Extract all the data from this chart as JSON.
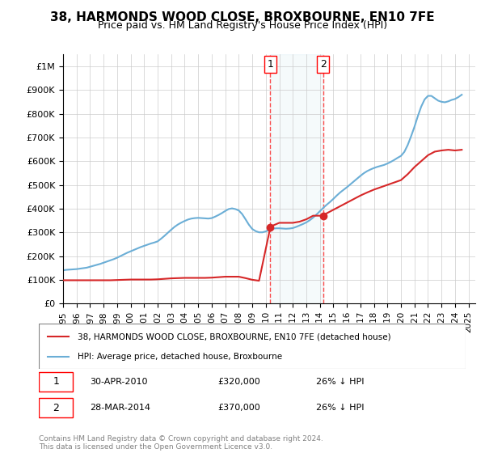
{
  "title": "38, HARMONDS WOOD CLOSE, BROXBOURNE, EN10 7FE",
  "subtitle": "Price paid vs. HM Land Registry's House Price Index (HPI)",
  "title_fontsize": 11,
  "subtitle_fontsize": 9,
  "hpi_color": "#6baed6",
  "price_color": "#d62728",
  "marker_color": "#d62728",
  "background_color": "#ffffff",
  "grid_color": "#cccccc",
  "ylim": [
    0,
    1050000
  ],
  "yticks": [
    0,
    100000,
    200000,
    300000,
    400000,
    500000,
    600000,
    700000,
    800000,
    900000,
    1000000
  ],
  "ytick_labels": [
    "£0",
    "£100K",
    "£200K",
    "£300K",
    "£400K",
    "£500K",
    "£600K",
    "£700K",
    "£800K",
    "£900K",
    "£1M"
  ],
  "xlim_start": 1995.0,
  "xlim_end": 2025.5,
  "xtick_years": [
    1995,
    1996,
    1997,
    1998,
    1999,
    2000,
    2001,
    2002,
    2003,
    2004,
    2005,
    2006,
    2007,
    2008,
    2009,
    2010,
    2011,
    2012,
    2013,
    2014,
    2015,
    2016,
    2017,
    2018,
    2019,
    2020,
    2021,
    2022,
    2023,
    2024,
    2025
  ],
  "sale1_x": 2010.33,
  "sale1_y": 320000,
  "sale1_label": "1",
  "sale2_x": 2014.24,
  "sale2_y": 370000,
  "sale2_label": "2",
  "legend_label_price": "38, HARMONDS WOOD CLOSE, BROXBOURNE, EN10 7FE (detached house)",
  "legend_label_hpi": "HPI: Average price, detached house, Broxbourne",
  "annotation1_date": "30-APR-2010",
  "annotation1_price": "£320,000",
  "annotation1_hpi": "26% ↓ HPI",
  "annotation2_date": "28-MAR-2014",
  "annotation2_price": "£370,000",
  "annotation2_hpi": "26% ↓ HPI",
  "footer_text": "Contains HM Land Registry data © Crown copyright and database right 2024.\nThis data is licensed under the Open Government Licence v3.0.",
  "hpi_x": [
    1995.0,
    1995.25,
    1995.5,
    1995.75,
    1996.0,
    1996.25,
    1996.5,
    1996.75,
    1997.0,
    1997.25,
    1997.5,
    1997.75,
    1998.0,
    1998.25,
    1998.5,
    1998.75,
    1999.0,
    1999.25,
    1999.5,
    1999.75,
    2000.0,
    2000.25,
    2000.5,
    2000.75,
    2001.0,
    2001.25,
    2001.5,
    2001.75,
    2002.0,
    2002.25,
    2002.5,
    2002.75,
    2003.0,
    2003.25,
    2003.5,
    2003.75,
    2004.0,
    2004.25,
    2004.5,
    2004.75,
    2005.0,
    2005.25,
    2005.5,
    2005.75,
    2006.0,
    2006.25,
    2006.5,
    2006.75,
    2007.0,
    2007.25,
    2007.5,
    2007.75,
    2008.0,
    2008.25,
    2008.5,
    2008.75,
    2009.0,
    2009.25,
    2009.5,
    2009.75,
    2010.0,
    2010.25,
    2010.5,
    2010.75,
    2011.0,
    2011.25,
    2011.5,
    2011.75,
    2012.0,
    2012.25,
    2012.5,
    2012.75,
    2013.0,
    2013.25,
    2013.5,
    2013.75,
    2014.0,
    2014.25,
    2014.5,
    2014.75,
    2015.0,
    2015.25,
    2015.5,
    2015.75,
    2016.0,
    2016.25,
    2016.5,
    2016.75,
    2017.0,
    2017.25,
    2017.5,
    2017.75,
    2018.0,
    2018.25,
    2018.5,
    2018.75,
    2019.0,
    2019.25,
    2019.5,
    2019.75,
    2020.0,
    2020.25,
    2020.5,
    2020.75,
    2021.0,
    2021.25,
    2021.5,
    2021.75,
    2022.0,
    2022.25,
    2022.5,
    2022.75,
    2023.0,
    2023.25,
    2023.5,
    2023.75,
    2024.0,
    2024.25,
    2024.5
  ],
  "hpi_y": [
    140000,
    142000,
    143000,
    144000,
    145000,
    147000,
    149000,
    151000,
    155000,
    159000,
    163000,
    167000,
    172000,
    177000,
    182000,
    187000,
    193000,
    200000,
    207000,
    214000,
    220000,
    226000,
    232000,
    238000,
    243000,
    248000,
    253000,
    257000,
    262000,
    273000,
    285000,
    298000,
    311000,
    323000,
    333000,
    341000,
    348000,
    354000,
    358000,
    360000,
    361000,
    360000,
    359000,
    358000,
    360000,
    366000,
    373000,
    381000,
    390000,
    398000,
    401000,
    398000,
    392000,
    377000,
    355000,
    332000,
    314000,
    305000,
    300000,
    300000,
    304000,
    310000,
    315000,
    317000,
    317000,
    316000,
    315000,
    316000,
    318000,
    323000,
    329000,
    335000,
    342000,
    351000,
    362000,
    375000,
    389000,
    403000,
    416000,
    428000,
    441000,
    455000,
    468000,
    479000,
    490000,
    502000,
    514000,
    526000,
    538000,
    549000,
    558000,
    565000,
    571000,
    576000,
    580000,
    584000,
    590000,
    597000,
    605000,
    614000,
    622000,
    639000,
    668000,
    705000,
    745000,
    790000,
    830000,
    860000,
    875000,
    875000,
    865000,
    855000,
    850000,
    848000,
    852000,
    858000,
    862000,
    870000,
    880000
  ],
  "price_x": [
    1995.0,
    1995.5,
    1996.0,
    1996.5,
    1997.0,
    1997.5,
    1998.0,
    1998.5,
    1999.0,
    1999.5,
    2000.0,
    2000.5,
    2001.0,
    2001.5,
    2002.0,
    2002.5,
    2003.0,
    2003.5,
    2004.0,
    2004.5,
    2005.0,
    2005.5,
    2006.0,
    2006.5,
    2007.0,
    2007.5,
    2008.0,
    2008.5,
    2009.0,
    2009.5,
    2010.33,
    2010.5,
    2011.0,
    2011.5,
    2012.0,
    2012.5,
    2013.0,
    2013.5,
    2014.24,
    2014.5,
    2015.0,
    2015.5,
    2016.0,
    2016.5,
    2017.0,
    2017.5,
    2018.0,
    2018.5,
    2019.0,
    2019.5,
    2020.0,
    2020.5,
    2021.0,
    2021.5,
    2022.0,
    2022.5,
    2023.0,
    2023.5,
    2024.0,
    2024.5
  ],
  "price_y": [
    98000,
    98000,
    98000,
    98000,
    98000,
    98000,
    98000,
    98000,
    99000,
    100000,
    101000,
    101000,
    101000,
    101000,
    102000,
    104000,
    106000,
    107000,
    108000,
    108000,
    108000,
    108000,
    109000,
    111000,
    113000,
    113000,
    113000,
    107000,
    100000,
    96000,
    320000,
    328000,
    340000,
    340000,
    340000,
    345000,
    355000,
    370000,
    370000,
    380000,
    395000,
    410000,
    425000,
    440000,
    455000,
    468000,
    480000,
    490000,
    500000,
    510000,
    520000,
    545000,
    575000,
    600000,
    625000,
    640000,
    645000,
    648000,
    645000,
    648000
  ]
}
